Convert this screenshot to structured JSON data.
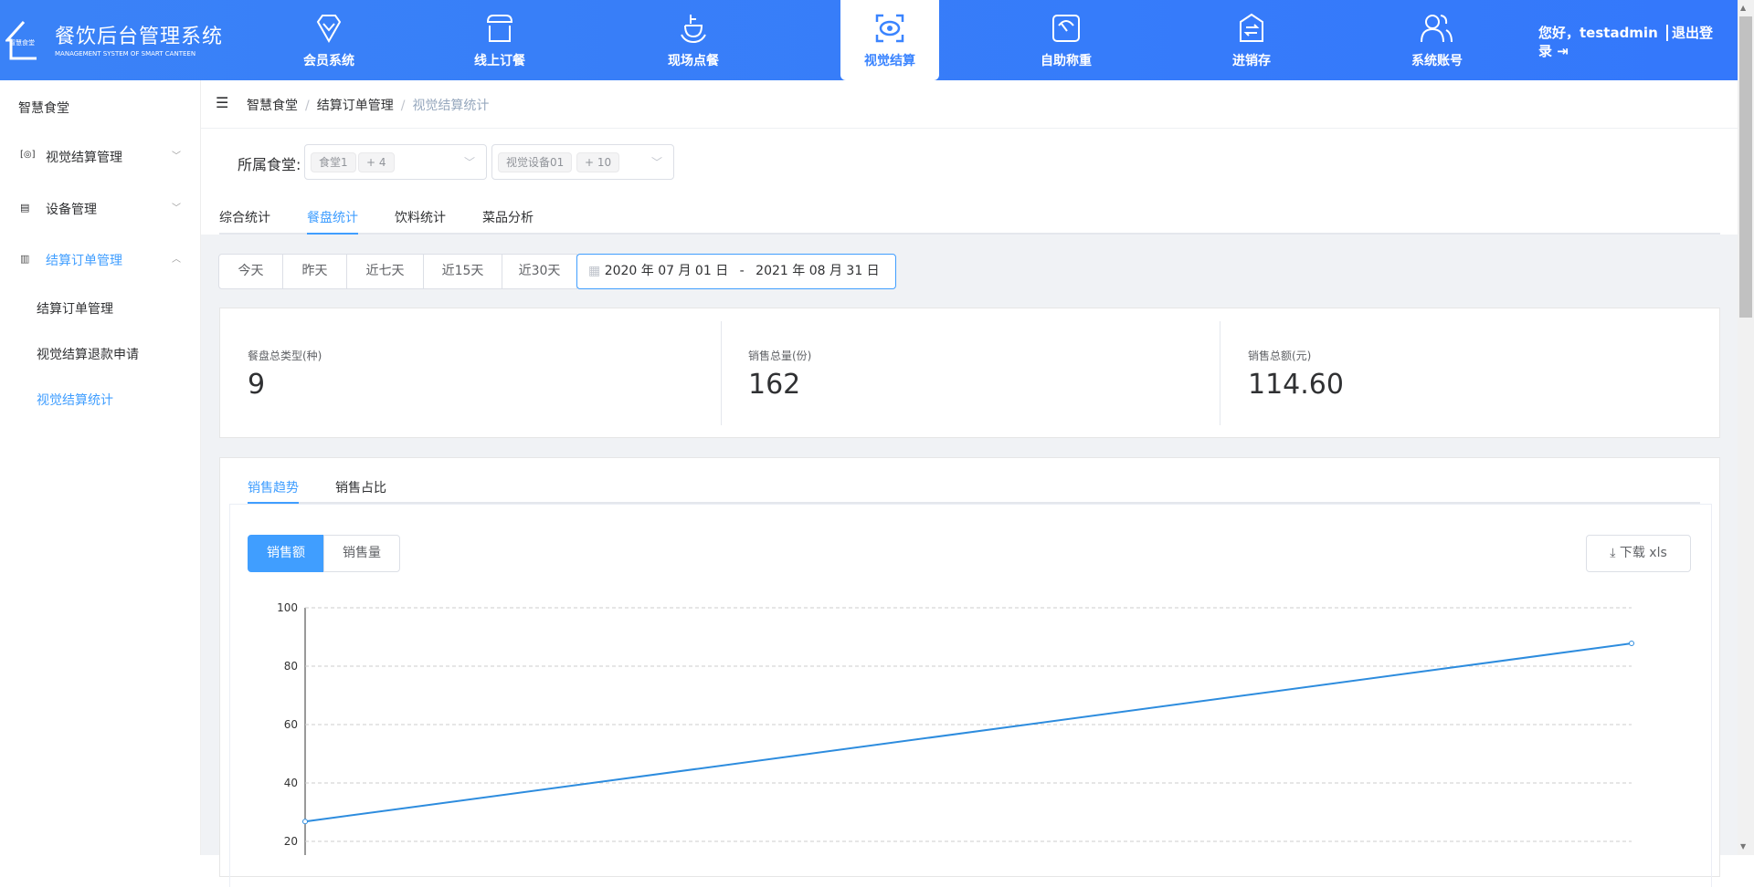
{
  "header": {
    "logo_badge": "智慧食堂",
    "title": "餐饮后台管理系统",
    "subtitle": "MANAGEMENT SYSTEM OF SMART CANTEEN",
    "nav": [
      {
        "label": "会员系统",
        "icon": "diamond-check-icon"
      },
      {
        "label": "线上订餐",
        "icon": "store-icon"
      },
      {
        "label": "现场点餐",
        "icon": "bowl-icon"
      },
      {
        "label": "视觉结算",
        "icon": "eye-scan-icon",
        "active": true
      },
      {
        "label": "自助称重",
        "icon": "scale-icon"
      },
      {
        "label": "进销存",
        "icon": "exchange-icon"
      },
      {
        "label": "系统账号",
        "icon": "users-icon"
      }
    ],
    "greeting": "您好，testadmin",
    "logout": "退出登录"
  },
  "sidebar": {
    "title": "智慧食堂",
    "groups": [
      {
        "label": "视觉结算管理",
        "icon": "scan-icon"
      },
      {
        "label": "设备管理",
        "icon": "device-icon"
      },
      {
        "label": "结算订单管理",
        "icon": "document-icon",
        "open": true
      }
    ],
    "sub_items": [
      {
        "label": "结算订单管理"
      },
      {
        "label": "视觉结算退款申请"
      },
      {
        "label": "视觉结算统计",
        "active": true
      }
    ]
  },
  "breadcrumb": [
    "智慧食堂",
    "结算订单管理",
    "视觉结算统计"
  ],
  "filter": {
    "label": "所属食堂:",
    "canteen_tags": [
      "食堂1",
      "+ 4"
    ],
    "device_tags": [
      "视觉设备01",
      "+ 10"
    ]
  },
  "tabs": [
    "综合统计",
    "餐盘统计",
    "饮料统计",
    "菜品分析"
  ],
  "active_tab": "餐盘统计",
  "date_buttons": [
    "今天",
    "昨天",
    "近七天",
    "近15天",
    "近30天"
  ],
  "date_range": {
    "start": "2020 年 07 月 01 日",
    "sep": "-",
    "end": "2021 年 08 月 31 日"
  },
  "stats": [
    {
      "label": "餐盘总类型(种)",
      "value": "9"
    },
    {
      "label": "销售总量(份)",
      "value": "162"
    },
    {
      "label": "销售总额(元)",
      "value": "114.60"
    }
  ],
  "chart_tabs": [
    "销售趋势",
    "销售占比"
  ],
  "metric_buttons": [
    "销售额",
    "销售量"
  ],
  "download": "下载 xls",
  "colors": {
    "accent": "#409eff",
    "header": "#3a82f7",
    "line": "#2d8cde"
  },
  "chart_data": {
    "type": "line",
    "y_ticks": [
      "100",
      "80",
      "60",
      "40",
      "20"
    ],
    "ylim": [
      20,
      100
    ],
    "grid": true,
    "series": [
      {
        "values": [
          26.8,
          87.8
        ]
      }
    ]
  }
}
